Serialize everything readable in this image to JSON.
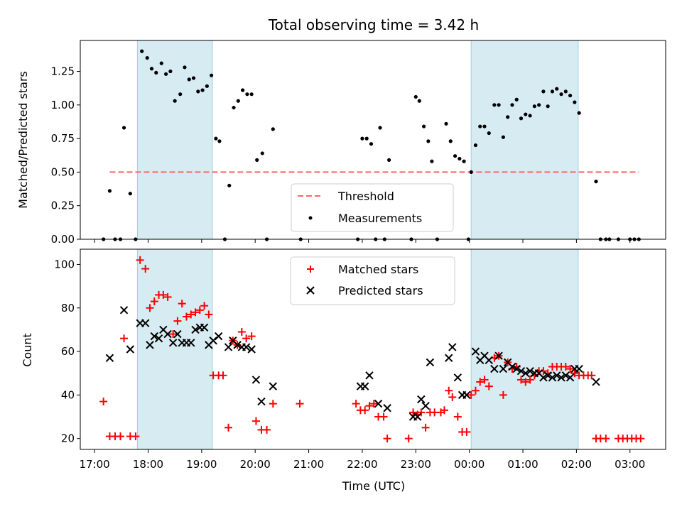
{
  "chart_data": [
    {
      "type": "scatter",
      "title": "Total observing time = 3.42 h",
      "xlabel": "",
      "ylabel": "Matched/Predicted stars",
      "ylim": [
        0,
        1.48
      ],
      "y_ticks": [
        "0.00",
        "0.25",
        "0.50",
        "0.75",
        "1.00",
        "1.25"
      ],
      "shaded_regions": [
        [
          "17:48",
          "19:12"
        ],
        [
          "00:02",
          "02:02"
        ]
      ],
      "threshold": {
        "name": "Threshold",
        "value": 0.5,
        "color": "#ff6666"
      },
      "legend": {
        "position": "lower-center",
        "entries": [
          "Threshold",
          "Measurements"
        ]
      },
      "series": [
        {
          "name": "Measurements",
          "color": "#000000",
          "points": [
            [
              "17:10",
              0
            ],
            [
              "17:17",
              0.36
            ],
            [
              "17:23",
              0
            ],
            [
              "17:29",
              0
            ],
            [
              "17:33",
              0.83
            ],
            [
              "17:40",
              0.34
            ],
            [
              "17:46",
              0
            ],
            [
              "17:53",
              1.4
            ],
            [
              "17:59",
              1.35
            ],
            [
              "18:04",
              1.27
            ],
            [
              "18:09",
              1.24
            ],
            [
              "18:15",
              1.31
            ],
            [
              "18:20",
              1.23
            ],
            [
              "18:25",
              1.25
            ],
            [
              "18:30",
              1.03
            ],
            [
              "18:36",
              1.08
            ],
            [
              "18:41",
              1.28
            ],
            [
              "18:46",
              1.19
            ],
            [
              "18:51",
              1.2
            ],
            [
              "18:56",
              1.1
            ],
            [
              "19:01",
              1.11
            ],
            [
              "19:06",
              1.14
            ],
            [
              "19:11",
              1.22
            ],
            [
              "19:16",
              0.75
            ],
            [
              "19:20",
              0.73
            ],
            [
              "19:26",
              0
            ],
            [
              "19:31",
              0.4
            ],
            [
              "19:36",
              0.98
            ],
            [
              "19:41",
              1.03
            ],
            [
              "19:46",
              1.11
            ],
            [
              "19:51",
              1.08
            ],
            [
              "19:56",
              1.08
            ],
            [
              "20:02",
              0.59
            ],
            [
              "20:08",
              0.64
            ],
            [
              "20:13",
              0
            ],
            [
              "20:20",
              0.82
            ],
            [
              "20:51",
              0
            ],
            [
              "21:55",
              0
            ],
            [
              "22:00",
              0.75
            ],
            [
              "22:05",
              0.75
            ],
            [
              "22:10",
              0.71
            ],
            [
              "22:15",
              0
            ],
            [
              "22:20",
              0.83
            ],
            [
              "22:25",
              0
            ],
            [
              "22:30",
              0.59
            ],
            [
              "22:55",
              0
            ],
            [
              "23:00",
              1.06
            ],
            [
              "23:04",
              1.03
            ],
            [
              "23:09",
              0.84
            ],
            [
              "23:14",
              0.73
            ],
            [
              "23:18",
              0.58
            ],
            [
              "23:24",
              0
            ],
            [
              "23:34",
              0.86
            ],
            [
              "23:39",
              0.73
            ],
            [
              "23:44",
              0.62
            ],
            [
              "23:49",
              0.6
            ],
            [
              "23:54",
              0.58
            ],
            [
              "23:59",
              0
            ],
            [
              "00:02",
              0.5
            ],
            [
              "00:07",
              0.7
            ],
            [
              "00:12",
              0.84
            ],
            [
              "00:17",
              0.84
            ],
            [
              "00:22",
              0.79
            ],
            [
              "00:28",
              1.0
            ],
            [
              "00:33",
              1.0
            ],
            [
              "00:38",
              0.76
            ],
            [
              "00:43",
              0.91
            ],
            [
              "00:48",
              1.0
            ],
            [
              "00:53",
              1.04
            ],
            [
              "00:58",
              0.9
            ],
            [
              "01:03",
              0.93
            ],
            [
              "01:08",
              0.92
            ],
            [
              "01:13",
              0.99
            ],
            [
              "01:18",
              1.0
            ],
            [
              "01:23",
              1.1
            ],
            [
              "01:28",
              0.99
            ],
            [
              "01:33",
              1.1
            ],
            [
              "01:38",
              1.12
            ],
            [
              "01:43",
              1.08
            ],
            [
              "01:48",
              1.1
            ],
            [
              "01:53",
              1.07
            ],
            [
              "01:58",
              1.02
            ],
            [
              "02:03",
              0.94
            ],
            [
              "02:22",
              0.43
            ],
            [
              "02:27",
              0
            ],
            [
              "02:33",
              0
            ],
            [
              "02:37",
              0
            ],
            [
              "02:47",
              0
            ],
            [
              "03:00",
              0
            ],
            [
              "03:05",
              0
            ],
            [
              "03:10",
              0
            ]
          ]
        }
      ]
    },
    {
      "type": "scatter",
      "title": "",
      "xlabel": "Time (UTC)",
      "ylabel": "Count",
      "ylim": [
        15,
        107
      ],
      "y_ticks": [
        "20",
        "40",
        "60",
        "80",
        "100"
      ],
      "x_ticks": [
        "17:00",
        "18:00",
        "19:00",
        "20:00",
        "21:00",
        "22:00",
        "23:00",
        "00:00",
        "01:00",
        "02:00",
        "03:00"
      ],
      "shaded_regions": [
        [
          "17:48",
          "19:12"
        ],
        [
          "00:02",
          "02:02"
        ]
      ],
      "legend": {
        "position": "top-center",
        "entries": [
          "Matched stars",
          "Predicted stars"
        ]
      },
      "series": [
        {
          "name": "Matched stars",
          "marker": "+",
          "color": "#ff0000",
          "points": [
            [
              "17:10",
              37
            ],
            [
              "17:17",
              21
            ],
            [
              "17:23",
              21
            ],
            [
              "17:29",
              21
            ],
            [
              "17:33",
              66
            ],
            [
              "17:40",
              21
            ],
            [
              "17:46",
              21
            ],
            [
              "17:51",
              102
            ],
            [
              "17:57",
              98
            ],
            [
              "18:02",
              80
            ],
            [
              "18:07",
              83
            ],
            [
              "18:12",
              86
            ],
            [
              "18:17",
              86
            ],
            [
              "18:22",
              85
            ],
            [
              "18:28",
              68
            ],
            [
              "18:33",
              74
            ],
            [
              "18:38",
              82
            ],
            [
              "18:43",
              76
            ],
            [
              "18:48",
              77
            ],
            [
              "18:53",
              78
            ],
            [
              "18:58",
              79
            ],
            [
              "19:03",
              81
            ],
            [
              "19:08",
              77
            ],
            [
              "19:13",
              49
            ],
            [
              "19:19",
              49
            ],
            [
              "19:24",
              49
            ],
            [
              "19:30",
              25
            ],
            [
              "19:35",
              65
            ],
            [
              "19:40",
              63
            ],
            [
              "19:45",
              69
            ],
            [
              "19:50",
              66
            ],
            [
              "19:56",
              67
            ],
            [
              "20:01",
              28
            ],
            [
              "20:07",
              24
            ],
            [
              "20:13",
              24
            ],
            [
              "20:20",
              36
            ],
            [
              "20:50",
              36
            ],
            [
              "21:53",
              36
            ],
            [
              "21:58",
              33
            ],
            [
              "22:03",
              33
            ],
            [
              "22:08",
              35
            ],
            [
              "22:13",
              36
            ],
            [
              "22:18",
              30
            ],
            [
              "22:24",
              30
            ],
            [
              "22:28",
              20
            ],
            [
              "22:52",
              20
            ],
            [
              "22:57",
              32
            ],
            [
              "23:02",
              31
            ],
            [
              "23:06",
              32
            ],
            [
              "23:11",
              25
            ],
            [
              "23:16",
              32
            ],
            [
              "23:21",
              32
            ],
            [
              "23:28",
              32
            ],
            [
              "23:32",
              33
            ],
            [
              "23:37",
              42
            ],
            [
              "23:41",
              39
            ],
            [
              "23:47",
              30
            ],
            [
              "23:52",
              23
            ],
            [
              "23:57",
              23
            ],
            [
              "00:02",
              40
            ],
            [
              "00:07",
              42
            ],
            [
              "00:12",
              46
            ],
            [
              "00:17",
              47
            ],
            [
              "00:22",
              44
            ],
            [
              "00:28",
              57
            ],
            [
              "00:33",
              58
            ],
            [
              "00:38",
              40
            ],
            [
              "00:43",
              55
            ],
            [
              "00:48",
              52
            ],
            [
              "00:53",
              53
            ],
            [
              "00:58",
              47
            ],
            [
              "01:03",
              46
            ],
            [
              "01:08",
              47
            ],
            [
              "01:13",
              49
            ],
            [
              "01:18",
              51
            ],
            [
              "01:23",
              51
            ],
            [
              "01:28",
              50
            ],
            [
              "01:33",
              53
            ],
            [
              "01:38",
              53
            ],
            [
              "01:43",
              53
            ],
            [
              "01:48",
              53
            ],
            [
              "01:53",
              52
            ],
            [
              "01:58",
              50
            ],
            [
              "02:03",
              49
            ],
            [
              "02:08",
              49
            ],
            [
              "02:13",
              49
            ],
            [
              "02:17",
              49
            ],
            [
              "02:22",
              20
            ],
            [
              "02:27",
              20
            ],
            [
              "02:33",
              20
            ],
            [
              "02:47",
              20
            ],
            [
              "02:52",
              20
            ],
            [
              "02:57",
              20
            ],
            [
              "03:02",
              20
            ],
            [
              "03:07",
              20
            ],
            [
              "03:12",
              20
            ]
          ]
        },
        {
          "name": "Predicted stars",
          "marker": "x",
          "color": "#000000",
          "points": [
            [
              "17:17",
              57
            ],
            [
              "17:33",
              79
            ],
            [
              "17:40",
              61
            ],
            [
              "17:51",
              73
            ],
            [
              "17:57",
              73
            ],
            [
              "18:02",
              63
            ],
            [
              "18:07",
              67
            ],
            [
              "18:12",
              66
            ],
            [
              "18:17",
              70
            ],
            [
              "18:22",
              68
            ],
            [
              "18:28",
              64
            ],
            [
              "18:33",
              68
            ],
            [
              "18:38",
              64
            ],
            [
              "18:43",
              64
            ],
            [
              "18:48",
              64
            ],
            [
              "18:53",
              70
            ],
            [
              "18:58",
              71
            ],
            [
              "19:03",
              71
            ],
            [
              "19:08",
              63
            ],
            [
              "19:13",
              65
            ],
            [
              "19:19",
              67
            ],
            [
              "19:30",
              62
            ],
            [
              "19:35",
              65
            ],
            [
              "19:40",
              63
            ],
            [
              "19:45",
              62
            ],
            [
              "19:50",
              62
            ],
            [
              "19:56",
              61
            ],
            [
              "20:01",
              47
            ],
            [
              "20:07",
              37
            ],
            [
              "20:20",
              44
            ],
            [
              "21:58",
              44
            ],
            [
              "22:03",
              44
            ],
            [
              "22:08",
              49
            ],
            [
              "22:18",
              36
            ],
            [
              "22:28",
              34
            ],
            [
              "22:57",
              30
            ],
            [
              "23:02",
              30
            ],
            [
              "23:06",
              38
            ],
            [
              "23:11",
              35
            ],
            [
              "23:16",
              55
            ],
            [
              "23:37",
              57
            ],
            [
              "23:41",
              62
            ],
            [
              "23:47",
              48
            ],
            [
              "23:52",
              40
            ],
            [
              "23:57",
              40
            ],
            [
              "00:07",
              60
            ],
            [
              "00:12",
              56
            ],
            [
              "00:17",
              58
            ],
            [
              "00:22",
              56
            ],
            [
              "00:28",
              52
            ],
            [
              "00:33",
              58
            ],
            [
              "00:38",
              52
            ],
            [
              "00:43",
              55
            ],
            [
              "00:48",
              53
            ],
            [
              "00:53",
              52
            ],
            [
              "00:58",
              51
            ],
            [
              "01:03",
              50
            ],
            [
              "01:08",
              51
            ],
            [
              "01:13",
              50
            ],
            [
              "01:18",
              50
            ],
            [
              "01:23",
              48
            ],
            [
              "01:28",
              49
            ],
            [
              "01:33",
              48
            ],
            [
              "01:38",
              49
            ],
            [
              "01:43",
              48
            ],
            [
              "01:48",
              49
            ],
            [
              "01:53",
              48
            ],
            [
              "01:58",
              52
            ],
            [
              "02:03",
              52
            ],
            [
              "02:22",
              46
            ]
          ]
        }
      ]
    }
  ]
}
